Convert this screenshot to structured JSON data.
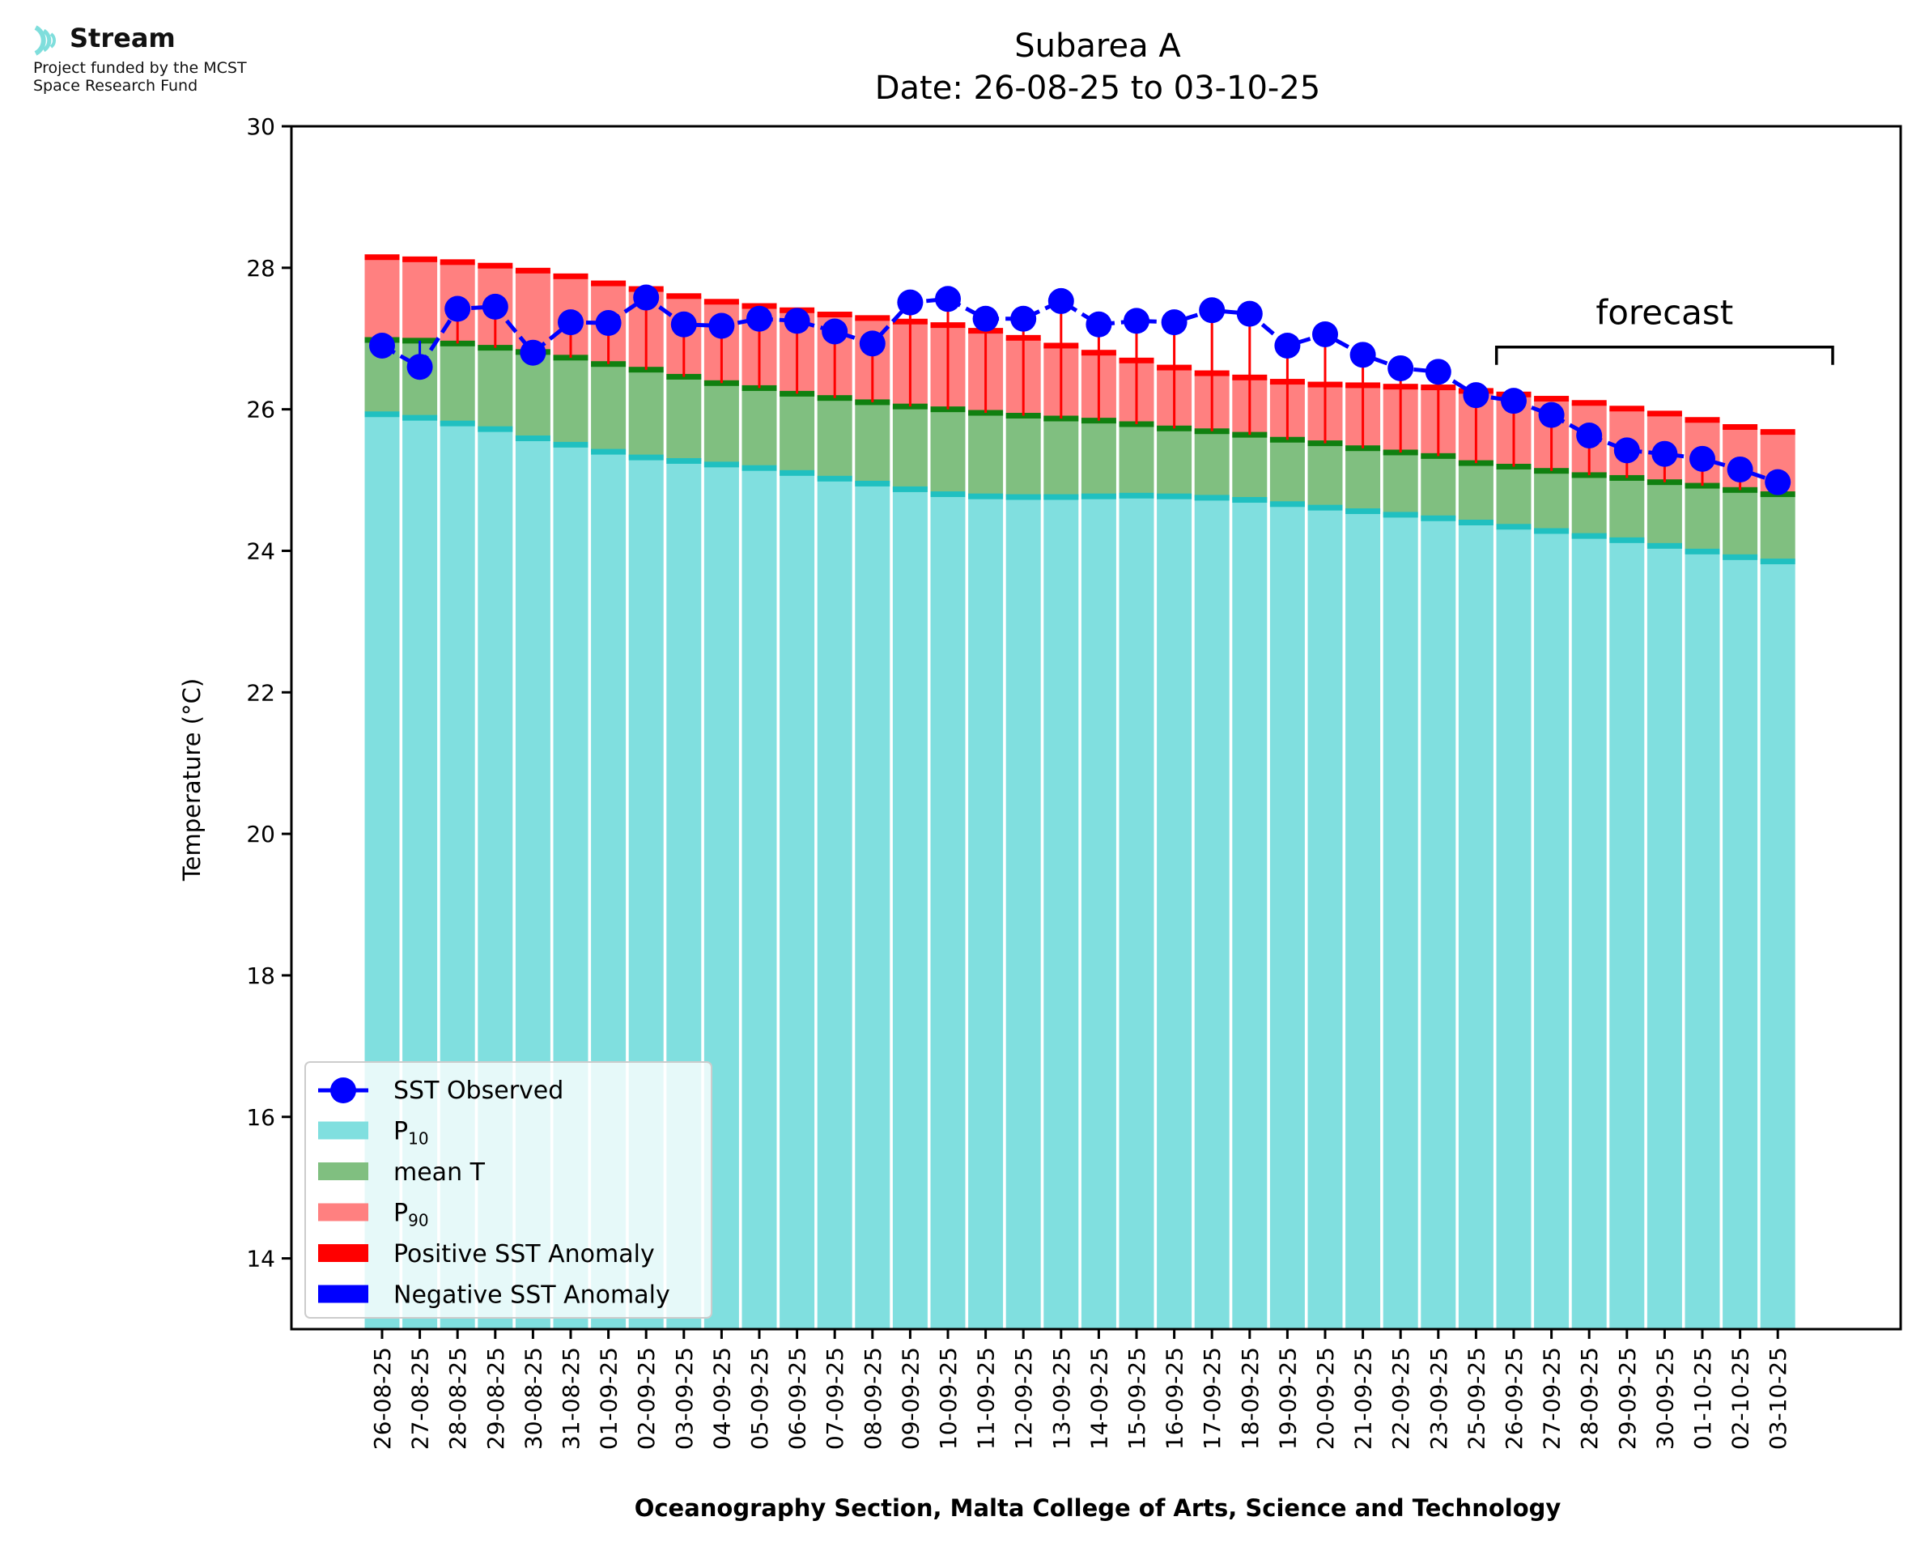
{
  "branding": {
    "name": "Stream",
    "funding_line1": "Project funded by the MCST",
    "funding_line2": "Space Research Fund",
    "accent_color": "#7fdedc"
  },
  "chart_data": {
    "type": "bar",
    "title": "Subarea A",
    "subtitle": "Date: 26-08-25 to 03-10-25",
    "xlabel": "Oceanography Section, Malta College of Arts, Science and Technology",
    "ylabel": "Temperature (°C)",
    "ylim": [
      13.0,
      30.0
    ],
    "yticks": [
      14,
      16,
      18,
      20,
      22,
      24,
      26,
      28,
      30
    ],
    "grid": false,
    "legend_position": "bottom-left",
    "categories": [
      "26-08-25",
      "27-08-25",
      "28-08-25",
      "29-08-25",
      "30-08-25",
      "31-08-25",
      "01-09-25",
      "02-09-25",
      "03-09-25",
      "04-09-25",
      "05-09-25",
      "06-09-25",
      "07-09-25",
      "08-09-25",
      "09-09-25",
      "10-09-25",
      "11-09-25",
      "12-09-25",
      "13-09-25",
      "14-09-25",
      "15-09-25",
      "16-09-25",
      "17-09-25",
      "18-09-25",
      "19-09-25",
      "20-09-25",
      "21-09-25",
      "22-09-25",
      "23-09-25",
      "25-09-25",
      "26-09-25",
      "27-09-25",
      "28-09-25",
      "29-09-25",
      "30-09-25",
      "01-10-25",
      "02-10-25",
      "03-10-25"
    ],
    "series": [
      {
        "name": "P10",
        "legend_main": "P",
        "legend_sub": "10",
        "color": "#80dfdf",
        "edge_color": "#20c0c0",
        "values": [
          25.93,
          25.88,
          25.8,
          25.72,
          25.59,
          25.5,
          25.4,
          25.32,
          25.27,
          25.22,
          25.17,
          25.1,
          25.02,
          24.95,
          24.87,
          24.8,
          24.77,
          24.76,
          24.76,
          24.77,
          24.78,
          24.77,
          24.75,
          24.72,
          24.66,
          24.61,
          24.56,
          24.51,
          24.46,
          24.4,
          24.34,
          24.28,
          24.21,
          24.15,
          24.07,
          23.99,
          23.91,
          23.85
        ]
      },
      {
        "name": "mean T",
        "color": "#80bf80",
        "edge_color": "#108010",
        "values": [
          26.98,
          26.97,
          26.93,
          26.87,
          26.81,
          26.73,
          26.64,
          26.56,
          26.46,
          26.37,
          26.3,
          26.22,
          26.16,
          26.1,
          26.04,
          26.0,
          25.95,
          25.91,
          25.87,
          25.84,
          25.79,
          25.73,
          25.69,
          25.64,
          25.57,
          25.52,
          25.45,
          25.39,
          25.34,
          25.24,
          25.19,
          25.13,
          25.07,
          25.03,
          24.97,
          24.92,
          24.86,
          24.8
        ]
      },
      {
        "name": "P90",
        "legend_main": "P",
        "legend_sub": "90",
        "color": "#ff8080",
        "edge_color": "#ff0000",
        "values": [
          28.15,
          28.12,
          28.08,
          28.03,
          27.96,
          27.88,
          27.78,
          27.7,
          27.6,
          27.52,
          27.46,
          27.4,
          27.34,
          27.29,
          27.24,
          27.19,
          27.11,
          27.01,
          26.9,
          26.8,
          26.69,
          26.59,
          26.51,
          26.45,
          26.39,
          26.35,
          26.34,
          26.32,
          26.31,
          26.26,
          26.21,
          26.15,
          26.09,
          26.01,
          25.94,
          25.85,
          25.75,
          25.68
        ]
      },
      {
        "name": "SST Observed",
        "color": "#0000ff",
        "values": [
          26.9,
          26.6,
          27.42,
          27.45,
          26.8,
          27.23,
          27.22,
          27.58,
          27.2,
          27.18,
          27.28,
          27.25,
          27.1,
          26.93,
          27.51,
          27.56,
          27.28,
          27.28,
          27.53,
          27.2,
          27.25,
          27.23,
          27.4,
          27.35,
          26.9,
          27.06,
          26.77,
          26.58,
          26.53,
          26.2,
          26.12,
          25.92,
          25.63,
          25.42,
          25.37,
          25.3,
          25.15,
          24.97
        ]
      }
    ],
    "anomaly_legend": [
      {
        "name": "Positive SST Anomaly",
        "color": "#ff0000"
      },
      {
        "name": "Negative SST Anomaly",
        "color": "#0000ff"
      }
    ],
    "annotations": [
      {
        "text": "forecast",
        "from_category": "26-09-25",
        "span": "through end of axis"
      }
    ]
  }
}
